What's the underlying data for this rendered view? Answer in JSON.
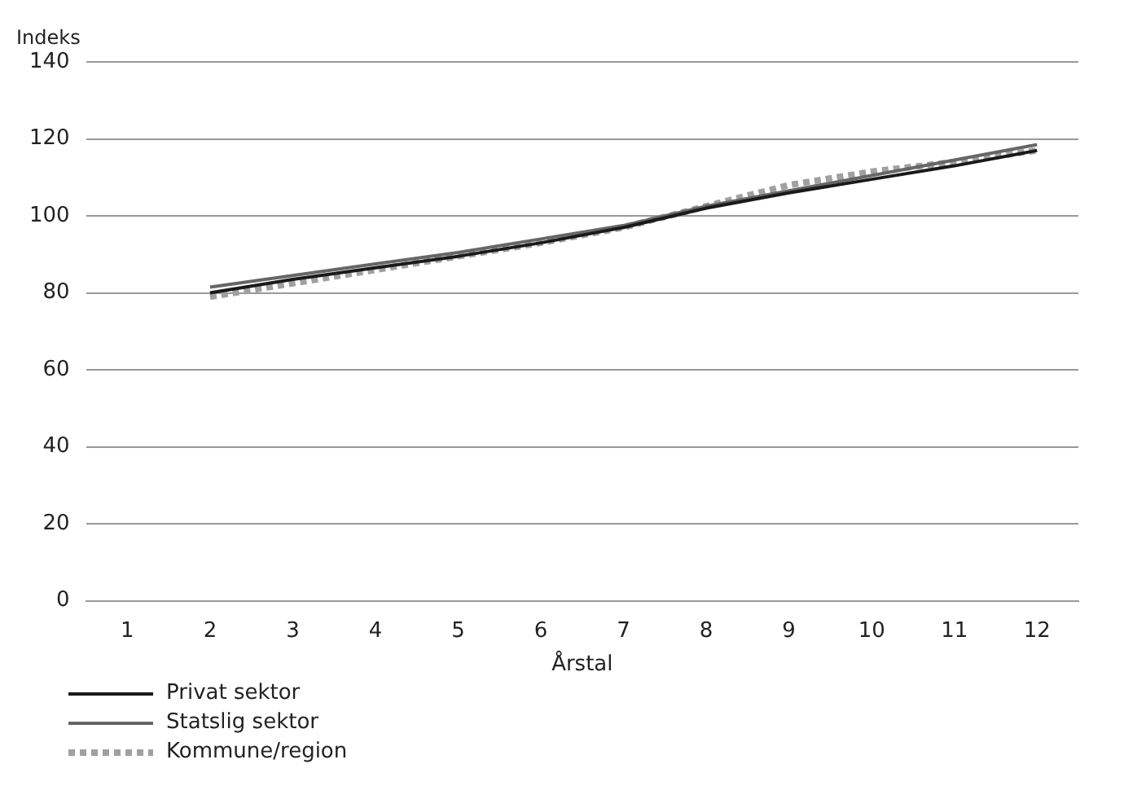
{
  "chart_data": {
    "type": "line",
    "ylabel": "Indeks",
    "xlabel": "Årstal",
    "x": [
      2,
      3,
      4,
      5,
      6,
      7,
      8,
      9,
      10,
      11,
      12
    ],
    "series": [
      {
        "name": "Privat sektor",
        "color": "#1a1a1a",
        "line_style": "solid",
        "values": [
          80,
          83.5,
          86.5,
          89.5,
          93,
          97,
          102,
          106,
          109.5,
          113,
          117
        ]
      },
      {
        "name": "Statslig sektor",
        "color": "#666666",
        "line_style": "solid",
        "values": [
          81.5,
          84.5,
          87.5,
          90.5,
          94,
          97.5,
          102.5,
          106.5,
          110.5,
          114.5,
          118.5
        ]
      },
      {
        "name": "Kommune/region",
        "color": "#a0a0a0",
        "line_style": "dotted",
        "values": [
          79,
          82.5,
          86,
          89.5,
          93,
          97,
          102.5,
          108,
          111.5,
          114,
          117
        ]
      }
    ],
    "xlim": [
      0.5,
      12.5
    ],
    "xticks": [
      1,
      2,
      3,
      4,
      5,
      6,
      7,
      8,
      9,
      10,
      11,
      12
    ],
    "ylim": [
      0,
      140
    ],
    "yticks": [
      0,
      20,
      40,
      60,
      80,
      100,
      120,
      140
    ],
    "grid": "y",
    "legend": "bottom",
    "marker": "none"
  }
}
